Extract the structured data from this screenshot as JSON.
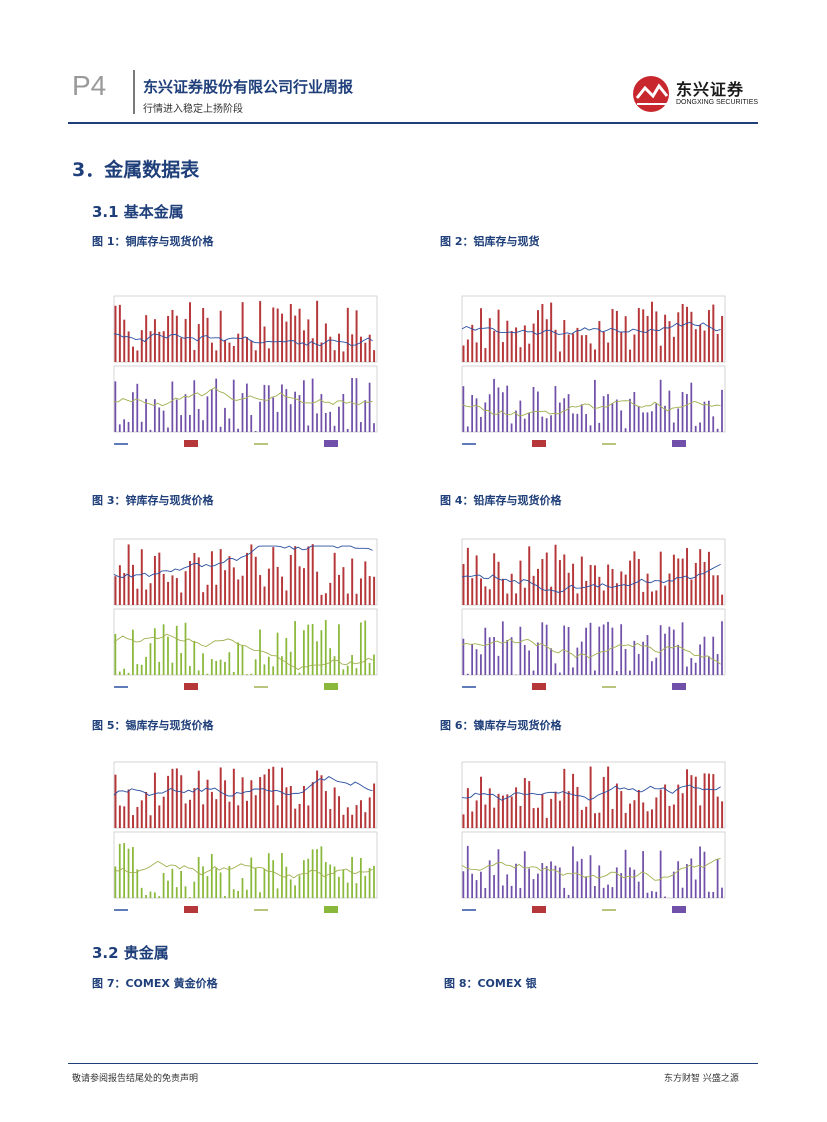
{
  "header": {
    "page_label": "P4",
    "company_title": "东兴证券股份有限公司行业周报",
    "report_subtitle": "行情进入稳定上扬阶段",
    "logo_text": "东兴证券",
    "logo_sub": "DONGXING SECURITIES"
  },
  "sections": {
    "metals_title": "3．金属数据表",
    "base_metals": "3.1 基本金属",
    "precious_metals": "3.2 贵金属"
  },
  "figures": [
    {
      "title": "图 1：铜库存与现货价格"
    },
    {
      "title": "图 2：铝库存与现货"
    },
    {
      "title": "图 3：锌库存与现货价格"
    },
    {
      "title": "图 4：铅库存与现货价格"
    },
    {
      "title": "图 5：锡库存与现货价格"
    },
    {
      "title": "图 6：镍库存与现货价格"
    },
    {
      "title": "图 7：COMEX 黄金价格"
    },
    {
      "title": "图 8：COMEX 银"
    }
  ],
  "footer": {
    "disclaimer": "敬请参阅报告结尾处的免责声明",
    "slogan": "东方财智 兴盛之源"
  },
  "colors": {
    "brand_blue": "#1f3f7a",
    "bar_red": "#b5373a",
    "bar_purple": "#7050a8",
    "bar_green": "#8ab83a",
    "line_blue": "#2a4fa0",
    "line_olive": "#a0b050"
  }
}
